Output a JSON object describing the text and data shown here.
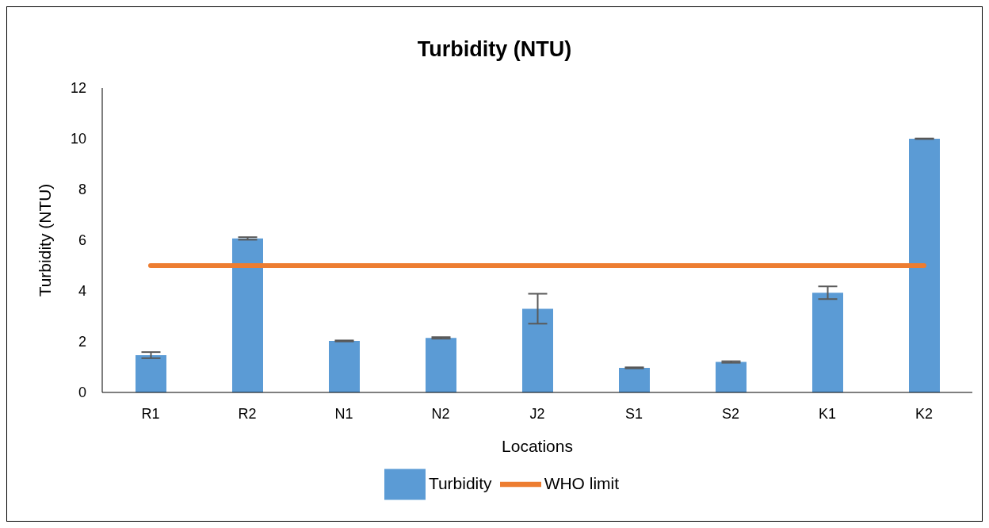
{
  "chart_data": {
    "type": "bar",
    "title": "Turbidity (NTU)",
    "xlabel": "Locations",
    "ylabel": "Turbidity (NTU)",
    "categories": [
      "R1",
      "R2",
      "N1",
      "N2",
      "J2",
      "S1",
      "S2",
      "K1",
      "K2"
    ],
    "series": [
      {
        "name": "Turbidity",
        "color": "#5b9bd5",
        "values": [
          1.47,
          6.07,
          2.03,
          2.15,
          3.3,
          0.97,
          1.2,
          3.93,
          10.0
        ],
        "errors": [
          0.12,
          0.05,
          0.02,
          0.03,
          0.59,
          0.02,
          0.03,
          0.25,
          0.01
        ]
      },
      {
        "name": "WHO limit",
        "type": "line",
        "color": "#ed7d31",
        "values": [
          5,
          5,
          5,
          5,
          5,
          5,
          5,
          5,
          5
        ],
        "marker": "none"
      }
    ],
    "ylim": [
      0,
      12
    ],
    "yticks": [
      0,
      2,
      4,
      6,
      8,
      10,
      12
    ],
    "grid": false,
    "legend": "bottom"
  }
}
